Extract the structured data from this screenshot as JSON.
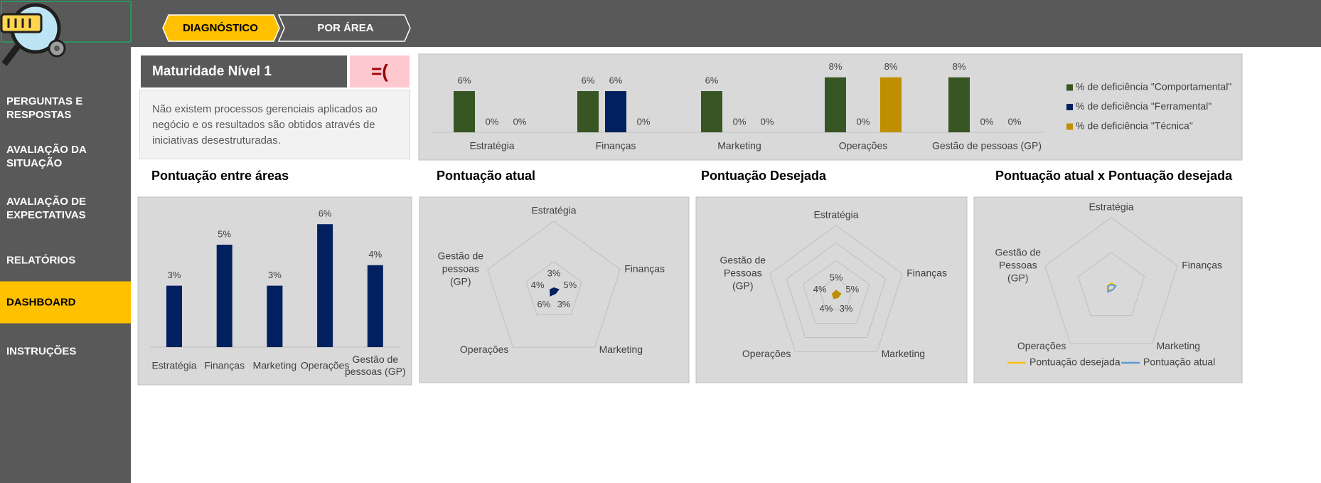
{
  "sidebar": {
    "items": [
      "PERGUNTAS E RESPOSTAS",
      "AVALIAÇÃO DA SITUAÇÃO",
      "AVALIAÇÃO DE EXPECTATIVAS",
      "RELATÓRIOS",
      "DASHBOARD",
      "INSTRUÇÕES"
    ],
    "active": 4
  },
  "tabs": {
    "items": [
      "DIAGNÓSTICO",
      "POR ÁREA"
    ],
    "active": 0
  },
  "maturity": {
    "title": "Maturidade Nível 1",
    "face": "=(",
    "description": "Não existem processos gerenciais aplicados ao negócio e os resultados são obtidos através de iniciativas desestruturadas."
  },
  "chart_data": [
    {
      "type": "bar",
      "categories": [
        "Estratégia",
        "Finanças",
        "Marketing",
        "Operações",
        "Gestão de pessoas (GP)"
      ],
      "series": [
        {
          "name": "% de deficiência \"Comportamental\"",
          "color": "#375623",
          "values": [
            6,
            6,
            6,
            8,
            8
          ],
          "value_labels": [
            "6%",
            "6%",
            "6%",
            "8%",
            "8%"
          ]
        },
        {
          "name": "% de deficiência \"Ferramental\"",
          "color": "#002060",
          "values": [
            0,
            6,
            0,
            0,
            0
          ],
          "value_labels": [
            "0%",
            "6%",
            "0%",
            "0%",
            "0%"
          ]
        },
        {
          "name": "% de deficiência \"Técnica\"",
          "color": "#bf8f00",
          "values": [
            0,
            0,
            0,
            8,
            0
          ],
          "value_labels": [
            "0%",
            "0%",
            "0%",
            "8%",
            "0%"
          ]
        }
      ],
      "legend": "right"
    },
    {
      "type": "bar",
      "title": "Pontuação entre áreas",
      "categories": [
        "Estratégia",
        "Finanças",
        "Marketing",
        "Operações",
        "Gestão de pessoas (GP)"
      ],
      "values": [
        3,
        5,
        3,
        6,
        4
      ],
      "value_labels": [
        "3%",
        "5%",
        "3%",
        "6%",
        "4%"
      ],
      "color": "#002060"
    },
    {
      "type": "radar",
      "title": "Pontuação atual",
      "categories": [
        "Estratégia",
        "Finanças",
        "Marketing",
        "Operações",
        "Gestão de pessoas (GP)"
      ],
      "values": [
        3,
        5,
        3,
        6,
        4
      ],
      "value_labels": [
        "3%",
        "5%",
        "3%",
        "6%",
        "4%"
      ],
      "color": "#002060"
    },
    {
      "type": "radar",
      "title": "Pontuação Desejada",
      "categories": [
        "Estratégia",
        "Finanças",
        "Marketing",
        "Operações",
        "Gestão de Pessoas (GP)"
      ],
      "values": [
        5,
        5,
        3,
        4,
        4
      ],
      "value_labels": [
        "5%",
        "5%",
        "3%",
        "4%",
        "4%"
      ],
      "color": "#bf8f00"
    },
    {
      "type": "radar",
      "title": "Pontuação atual x Pontuação desejada",
      "categories": [
        "Estratégia",
        "Finanças",
        "Marketing",
        "Operações",
        "Gestão de Pessoas (GP)"
      ],
      "series": [
        {
          "name": "Pontuação desejada",
          "color": "#ffc000",
          "values": [
            5,
            5,
            3,
            4,
            4
          ]
        },
        {
          "name": "Pontuação atual",
          "color": "#5b9bd5",
          "values": [
            3,
            5,
            3,
            6,
            4
          ]
        }
      ],
      "legend": "bottom"
    }
  ]
}
